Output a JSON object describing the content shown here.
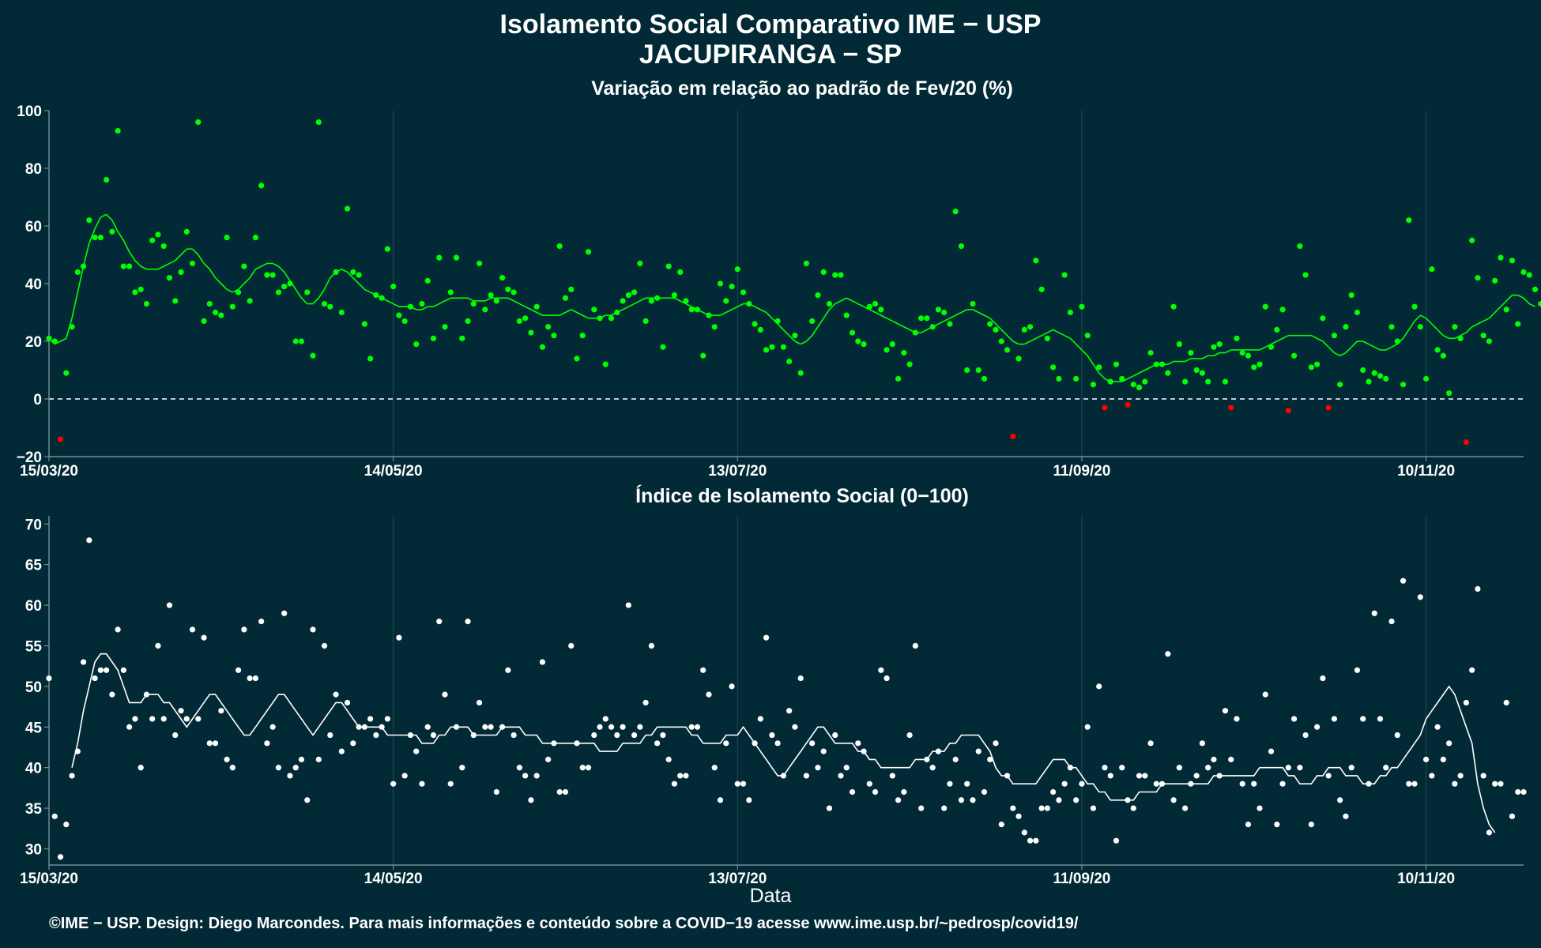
{
  "title_line1": "Isolamento Social Comparativo IME − USP",
  "title_line2": "JACUPIRANGA − SP",
  "x_axis_title": "Data",
  "footer": "©IME − USP. Design: Diego Marcondes. Para mais informações e conteúdo sobre a COVID−19 acesse www.ime.usp.br/~pedrosp/covid19/",
  "colors": {
    "background": "#022a36",
    "positive": "#00ff00",
    "negative": "#ff0000",
    "index": "#ffffff",
    "zero_line": "#ffffff",
    "grid": "#1e4a56",
    "panel_border": "#8aa0a8"
  },
  "chart_data": [
    {
      "type": "scatter",
      "title": "Variação em relação ao padrão de Fev/20 (%)",
      "xlabel": "",
      "ylabel": "",
      "x_start": "15/03/20",
      "x_end": "27/11/20",
      "xlim_days": [
        0,
        257
      ],
      "ylim": [
        -20,
        100
      ],
      "yticks": [
        -20,
        0,
        20,
        40,
        60,
        80,
        100
      ],
      "x_ticks": [
        {
          "label": "15/03/20",
          "day": 0
        },
        {
          "label": "14/05/20",
          "day": 60
        },
        {
          "label": "13/07/20",
          "day": 120
        },
        {
          "label": "11/09/20",
          "day": 180
        },
        {
          "label": "10/11/20",
          "day": 240
        }
      ],
      "zero_reference_line": true,
      "grid": true,
      "series": [
        {
          "role": "daily_points",
          "values": [
            21,
            20,
            -14,
            9,
            25,
            44,
            46,
            62,
            56,
            56,
            76,
            58,
            93,
            46,
            46,
            37,
            38,
            33,
            55,
            57,
            53,
            42,
            34,
            44,
            58,
            47,
            96,
            27,
            33,
            30,
            29,
            56,
            32,
            37,
            46,
            34,
            56,
            74,
            43,
            43,
            37,
            39,
            40,
            20,
            20,
            37,
            15,
            96,
            33,
            32,
            44,
            30,
            66,
            44,
            43,
            26,
            14,
            36,
            35,
            52,
            39,
            29,
            27,
            32,
            19,
            33,
            41,
            21,
            49,
            25,
            37,
            49,
            21,
            27,
            33,
            47,
            31,
            36,
            34,
            42,
            38,
            37,
            27,
            28,
            23,
            32,
            18,
            25,
            22,
            53,
            35,
            38,
            14,
            22,
            51,
            31,
            28,
            12,
            28,
            30,
            34,
            36,
            37,
            47,
            27,
            34,
            35,
            18,
            46,
            36,
            44,
            34,
            31,
            31,
            15,
            29,
            25,
            40,
            34,
            39,
            45,
            37,
            33,
            26,
            24,
            17,
            18,
            27,
            18,
            13,
            22,
            9,
            47,
            27,
            36,
            44,
            33,
            43,
            43,
            29,
            23,
            20,
            19,
            32,
            33,
            31,
            17,
            19,
            7,
            16,
            12,
            23,
            28,
            28,
            25,
            31,
            30,
            26,
            65,
            53,
            10,
            33,
            10,
            7,
            26,
            24,
            20,
            17,
            -13,
            14,
            24,
            25,
            48,
            38,
            21,
            11,
            7,
            43,
            30,
            7,
            32,
            22,
            5,
            11,
            -3,
            6,
            12,
            7,
            -2,
            5,
            4,
            6,
            16,
            12,
            12,
            9,
            32,
            19,
            6,
            16,
            10,
            9,
            6,
            18,
            19,
            6,
            -3,
            21,
            16,
            15,
            11,
            12,
            32,
            18,
            24,
            31,
            -4,
            15,
            53,
            43,
            11,
            12,
            28,
            -3,
            22,
            5,
            25,
            36,
            30,
            10,
            6,
            9,
            8,
            7,
            25,
            20,
            5,
            62,
            32,
            25,
            7,
            45,
            17,
            15,
            2,
            25,
            21,
            -15,
            55,
            42,
            22,
            20,
            41,
            49,
            31,
            48,
            26,
            44,
            43,
            38,
            33,
            33
          ]
        },
        {
          "role": "moving_average",
          "values": [
            21,
            19,
            20,
            21,
            28,
            37,
            46,
            54,
            59,
            63,
            64,
            62,
            58,
            55,
            51,
            48,
            46,
            45,
            45,
            45,
            46,
            47,
            48,
            50,
            52,
            52,
            50,
            47,
            45,
            42,
            40,
            38,
            37,
            38,
            40,
            42,
            45,
            46,
            47,
            47,
            46,
            44,
            41,
            38,
            35,
            33,
            33,
            35,
            38,
            42,
            44,
            45,
            44,
            42,
            40,
            38,
            37,
            36,
            35,
            34,
            33,
            32,
            32,
            32,
            31,
            31,
            32,
            32,
            33,
            34,
            35,
            35,
            35,
            35,
            34,
            34,
            34,
            35,
            35,
            35,
            35,
            34,
            33,
            32,
            31,
            30,
            29,
            29,
            29,
            29,
            30,
            31,
            30,
            29,
            28,
            28,
            28,
            29,
            29,
            30,
            31,
            32,
            33,
            34,
            35,
            35,
            35,
            35,
            35,
            35,
            34,
            33,
            32,
            31,
            30,
            29,
            29,
            29,
            30,
            31,
            32,
            33,
            33,
            32,
            31,
            30,
            28,
            26,
            24,
            22,
            20,
            19,
            20,
            22,
            25,
            28,
            31,
            33,
            34,
            35,
            34,
            33,
            32,
            31,
            30,
            29,
            28,
            27,
            26,
            25,
            24,
            23,
            23,
            24,
            25,
            26,
            27,
            28,
            29,
            30,
            31,
            31,
            30,
            29,
            28,
            26,
            24,
            22,
            20,
            19,
            19,
            20,
            21,
            22,
            23,
            24,
            23,
            22,
            21,
            19,
            17,
            15,
            12,
            9,
            7,
            6,
            6,
            6,
            7,
            8,
            9,
            10,
            11,
            12,
            12,
            12,
            13,
            13,
            13,
            14,
            14,
            14,
            15,
            15,
            16,
            16,
            17,
            17,
            17,
            17,
            17,
            17,
            18,
            19,
            20,
            21,
            22,
            22,
            22,
            22,
            22,
            21,
            20,
            18,
            16,
            15,
            16,
            18,
            20,
            20,
            19,
            18,
            17,
            17,
            18,
            19,
            21,
            24,
            27,
            29,
            28,
            26,
            24,
            22,
            21,
            21,
            22,
            23,
            25,
            26,
            27,
            28,
            30,
            32,
            34,
            36,
            36,
            35,
            33,
            32
          ]
        }
      ]
    },
    {
      "type": "scatter",
      "title": "Índice de Isolamento Social (0−100)",
      "xlabel": "Data",
      "ylabel": "",
      "x_start": "15/03/20",
      "x_end": "27/11/20",
      "xlim_days": [
        0,
        257
      ],
      "ylim": [
        28,
        71
      ],
      "yticks": [
        30,
        35,
        40,
        45,
        50,
        55,
        60,
        65,
        70
      ],
      "x_ticks": [
        {
          "label": "15/03/20",
          "day": 0
        },
        {
          "label": "14/05/20",
          "day": 60
        },
        {
          "label": "13/07/20",
          "day": 120
        },
        {
          "label": "11/09/20",
          "day": 180
        },
        {
          "label": "10/11/20",
          "day": 240
        }
      ],
      "grid": true,
      "series": [
        {
          "role": "daily_points",
          "values": [
            51,
            34,
            29,
            33,
            39,
            42,
            53,
            68,
            51,
            52,
            52,
            49,
            57,
            52,
            45,
            46,
            40,
            49,
            46,
            55,
            46,
            60,
            44,
            47,
            46,
            57,
            46,
            56,
            43,
            43,
            47,
            41,
            40,
            52,
            57,
            51,
            51,
            58,
            43,
            45,
            40,
            59,
            39,
            40,
            41,
            36,
            57,
            41,
            55,
            44,
            49,
            42,
            48,
            43,
            45,
            45,
            46,
            44,
            45,
            46,
            38,
            56,
            39,
            44,
            42,
            38,
            45,
            44,
            58,
            49,
            38,
            45,
            40,
            58,
            44,
            48,
            45,
            45,
            37,
            45,
            52,
            44,
            40,
            39,
            36,
            39,
            53,
            41,
            43,
            37,
            37,
            55,
            43,
            40,
            40,
            44,
            45,
            46,
            45,
            44,
            45,
            60,
            44,
            45,
            48,
            55,
            43,
            44,
            41,
            38,
            39,
            39,
            45,
            45,
            52,
            49,
            40,
            36,
            43,
            50,
            38,
            38,
            36,
            43,
            46,
            56,
            44,
            43,
            39,
            47,
            45,
            51,
            39,
            43,
            40,
            42,
            35,
            44,
            39,
            40,
            37,
            43,
            42,
            38,
            37,
            52,
            51,
            39,
            36,
            37,
            44,
            55,
            35,
            41,
            40,
            42,
            35,
            38,
            41,
            36,
            38,
            36,
            42,
            37,
            41,
            43,
            33,
            39,
            35,
            34,
            32,
            31,
            31,
            35,
            35,
            37,
            36,
            38,
            40,
            36,
            38,
            45,
            35,
            50,
            40,
            39,
            31,
            40,
            36,
            35,
            39,
            39,
            43,
            38,
            38,
            54,
            36,
            40,
            35,
            38,
            39,
            43,
            40,
            41,
            39,
            47,
            41,
            46,
            38,
            33,
            38,
            35,
            49,
            42,
            33,
            38,
            40,
            46,
            40,
            44,
            33,
            45,
            51,
            39,
            46,
            36,
            34,
            40,
            52,
            46,
            38,
            59,
            46,
            40,
            58,
            44,
            63,
            38,
            38,
            61,
            41,
            39,
            45,
            41,
            43,
            38,
            39,
            48,
            52,
            62,
            39,
            32,
            38,
            38,
            48,
            34,
            37,
            37
          ]
        },
        {
          "role": "moving_average",
          "values": [
            40,
            43,
            47,
            50,
            53,
            54,
            54,
            53,
            52,
            50,
            48,
            48,
            48,
            49,
            49,
            49,
            48,
            48,
            47,
            46,
            45,
            46,
            47,
            48,
            49,
            49,
            48,
            47,
            46,
            45,
            44,
            44,
            45,
            46,
            47,
            48,
            49,
            49,
            48,
            47,
            46,
            45,
            44,
            45,
            46,
            47,
            48,
            48,
            47,
            46,
            45,
            45,
            45,
            45,
            45,
            44,
            44,
            44,
            44,
            44,
            44,
            43,
            43,
            43,
            44,
            44,
            45,
            45,
            45,
            45,
            44,
            44,
            44,
            44,
            44,
            45,
            45,
            45,
            45,
            44,
            44,
            44,
            43,
            43,
            43,
            43,
            43,
            43,
            43,
            43,
            43,
            43,
            42,
            42,
            42,
            42,
            43,
            43,
            43,
            43,
            44,
            44,
            45,
            45,
            45,
            45,
            45,
            45,
            44,
            44,
            43,
            43,
            43,
            43,
            44,
            44,
            44,
            45,
            44,
            43,
            42,
            41,
            40,
            39,
            39,
            40,
            41,
            42,
            43,
            44,
            45,
            45,
            44,
            43,
            43,
            43,
            43,
            42,
            42,
            41,
            41,
            40,
            40,
            40,
            40,
            40,
            40,
            41,
            41,
            41,
            42,
            42,
            42,
            43,
            43,
            44,
            44,
            44,
            44,
            43,
            42,
            40,
            39,
            39,
            38,
            38,
            38,
            38,
            38,
            39,
            40,
            41,
            41,
            41,
            40,
            40,
            39,
            38,
            38,
            37,
            37,
            36,
            36,
            36,
            36,
            36,
            37,
            37,
            37,
            37,
            38,
            38,
            38,
            38,
            38,
            38,
            38,
            38,
            38,
            39,
            39,
            39,
            39,
            39,
            39,
            39,
            39,
            40,
            40,
            40,
            40,
            40,
            39,
            39,
            38,
            38,
            38,
            39,
            39,
            40,
            40,
            40,
            39,
            39,
            39,
            38,
            38,
            38,
            39,
            39,
            40,
            40,
            41,
            42,
            43,
            44,
            46,
            47,
            48,
            49,
            50,
            49,
            47,
            45,
            43,
            38,
            35,
            33,
            32
          ]
        }
      ]
    }
  ]
}
